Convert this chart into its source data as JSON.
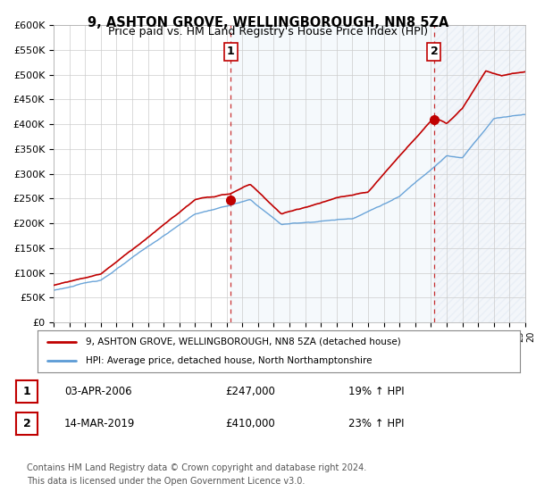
{
  "title": "9, ASHTON GROVE, WELLINGBOROUGH, NN8 5ZA",
  "subtitle": "Price paid vs. HM Land Registry's House Price Index (HPI)",
  "ylim": [
    0,
    600000
  ],
  "yticks": [
    0,
    50000,
    100000,
    150000,
    200000,
    250000,
    300000,
    350000,
    400000,
    450000,
    500000,
    550000,
    600000
  ],
  "ytick_labels": [
    "£0",
    "£50K",
    "£100K",
    "£150K",
    "£200K",
    "£250K",
    "£300K",
    "£350K",
    "£400K",
    "£450K",
    "£500K",
    "£550K",
    "£600K"
  ],
  "hpi_color": "#5b9bd5",
  "hpi_fill_color": "#daeaf7",
  "price_color": "#c00000",
  "marker_color": "#c00000",
  "background_color": "#ffffff",
  "grid_color": "#cccccc",
  "sale1_x": 2006.25,
  "sale1_y": 247000,
  "sale2_x": 2019.2,
  "sale2_y": 410000,
  "xlim_start": 1995,
  "xlim_end": 2025,
  "legend_line1": "9, ASHTON GROVE, WELLINGBOROUGH, NN8 5ZA (detached house)",
  "legend_line2": "HPI: Average price, detached house, North Northamptonshire",
  "footer1": "Contains HM Land Registry data © Crown copyright and database right 2024.",
  "footer2": "This data is licensed under the Open Government Licence v3.0.",
  "box1_label": "1",
  "box1_date": "03-APR-2006",
  "box1_price": "£247,000",
  "box1_hpi": "19% ↑ HPI",
  "box2_label": "2",
  "box2_date": "14-MAR-2019",
  "box2_price": "£410,000",
  "box2_hpi": "23% ↑ HPI"
}
